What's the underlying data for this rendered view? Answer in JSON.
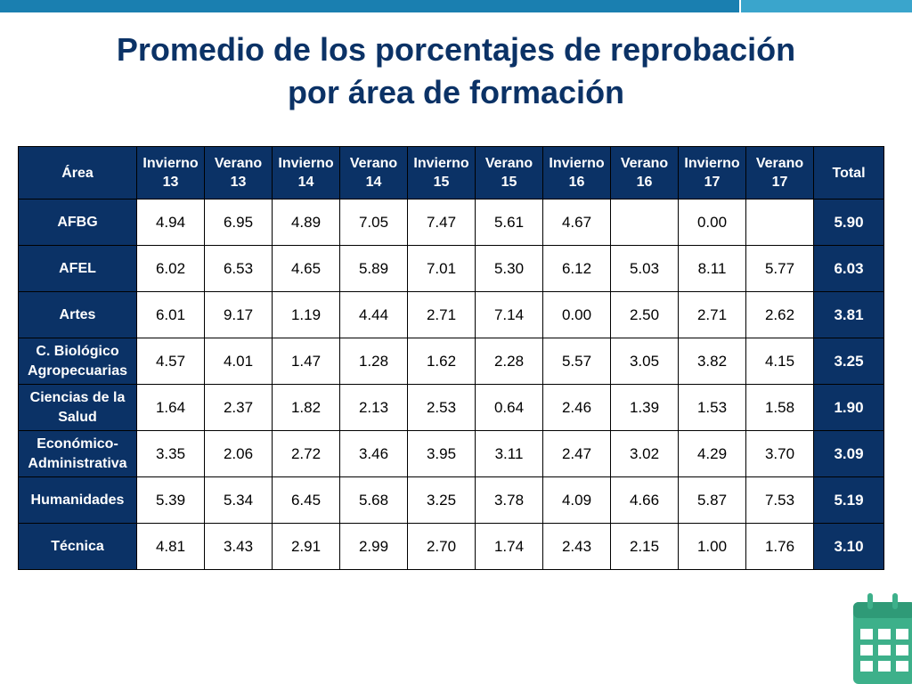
{
  "title": {
    "line1": "Promedio de los porcentajes de reprobación",
    "line2": "por área de formación"
  },
  "table": {
    "headers": [
      {
        "l1": "Área",
        "l2": ""
      },
      {
        "l1": "Invierno",
        "l2": "13"
      },
      {
        "l1": "Verano",
        "l2": "13"
      },
      {
        "l1": "Invierno",
        "l2": "14"
      },
      {
        "l1": "Verano",
        "l2": "14"
      },
      {
        "l1": "Invierno",
        "l2": "15"
      },
      {
        "l1": "Verano",
        "l2": "15"
      },
      {
        "l1": "Invierno",
        "l2": "16"
      },
      {
        "l1": "Verano",
        "l2": "16"
      },
      {
        "l1": "Invierno",
        "l2": "17"
      },
      {
        "l1": "Verano",
        "l2": "17"
      },
      {
        "l1": "Total",
        "l2": ""
      }
    ],
    "rows": [
      {
        "area_l1": "AFBG",
        "area_l2": "",
        "values": [
          "4.94",
          "6.95",
          "4.89",
          "7.05",
          "7.47",
          "5.61",
          "4.67",
          "",
          "0.00",
          ""
        ],
        "total": "5.90"
      },
      {
        "area_l1": "AFEL",
        "area_l2": "",
        "values": [
          "6.02",
          "6.53",
          "4.65",
          "5.89",
          "7.01",
          "5.30",
          "6.12",
          "5.03",
          "8.11",
          "5.77"
        ],
        "total": "6.03"
      },
      {
        "area_l1": "Artes",
        "area_l2": "",
        "values": [
          "6.01",
          "9.17",
          "1.19",
          "4.44",
          "2.71",
          "7.14",
          "0.00",
          "2.50",
          "2.71",
          "2.62"
        ],
        "total": "3.81"
      },
      {
        "area_l1": "C. Biológico",
        "area_l2": "Agropecuarias",
        "values": [
          "4.57",
          "4.01",
          "1.47",
          "1.28",
          "1.62",
          "2.28",
          "5.57",
          "3.05",
          "3.82",
          "4.15"
        ],
        "total": "3.25"
      },
      {
        "area_l1": "Ciencias de la",
        "area_l2": "Salud",
        "values": [
          "1.64",
          "2.37",
          "1.82",
          "2.13",
          "2.53",
          "0.64",
          "2.46",
          "1.39",
          "1.53",
          "1.58"
        ],
        "total": "1.90"
      },
      {
        "area_l1": "Económico-",
        "area_l2": "Administrativa",
        "values": [
          "3.35",
          "2.06",
          "2.72",
          "3.46",
          "3.95",
          "3.11",
          "2.47",
          "3.02",
          "4.29",
          "3.70"
        ],
        "total": "3.09"
      },
      {
        "area_l1": "Humanidades",
        "area_l2": "",
        "values": [
          "5.39",
          "5.34",
          "6.45",
          "5.68",
          "3.25",
          "3.78",
          "4.09",
          "4.66",
          "5.87",
          "7.53"
        ],
        "total": "5.19"
      },
      {
        "area_l1": "Técnica",
        "area_l2": "",
        "values": [
          "4.81",
          "3.43",
          "2.91",
          "2.99",
          "2.70",
          "1.74",
          "2.43",
          "2.15",
          "1.00",
          "1.76"
        ],
        "total": "3.10"
      }
    ]
  },
  "icons": {
    "corner": "calendar-icon"
  },
  "colors": {
    "navy": "#0b3266",
    "top_bar": "#1a7fb0",
    "top_bar_accent": "#3aa5cc",
    "icon_green": "#3db08a"
  }
}
